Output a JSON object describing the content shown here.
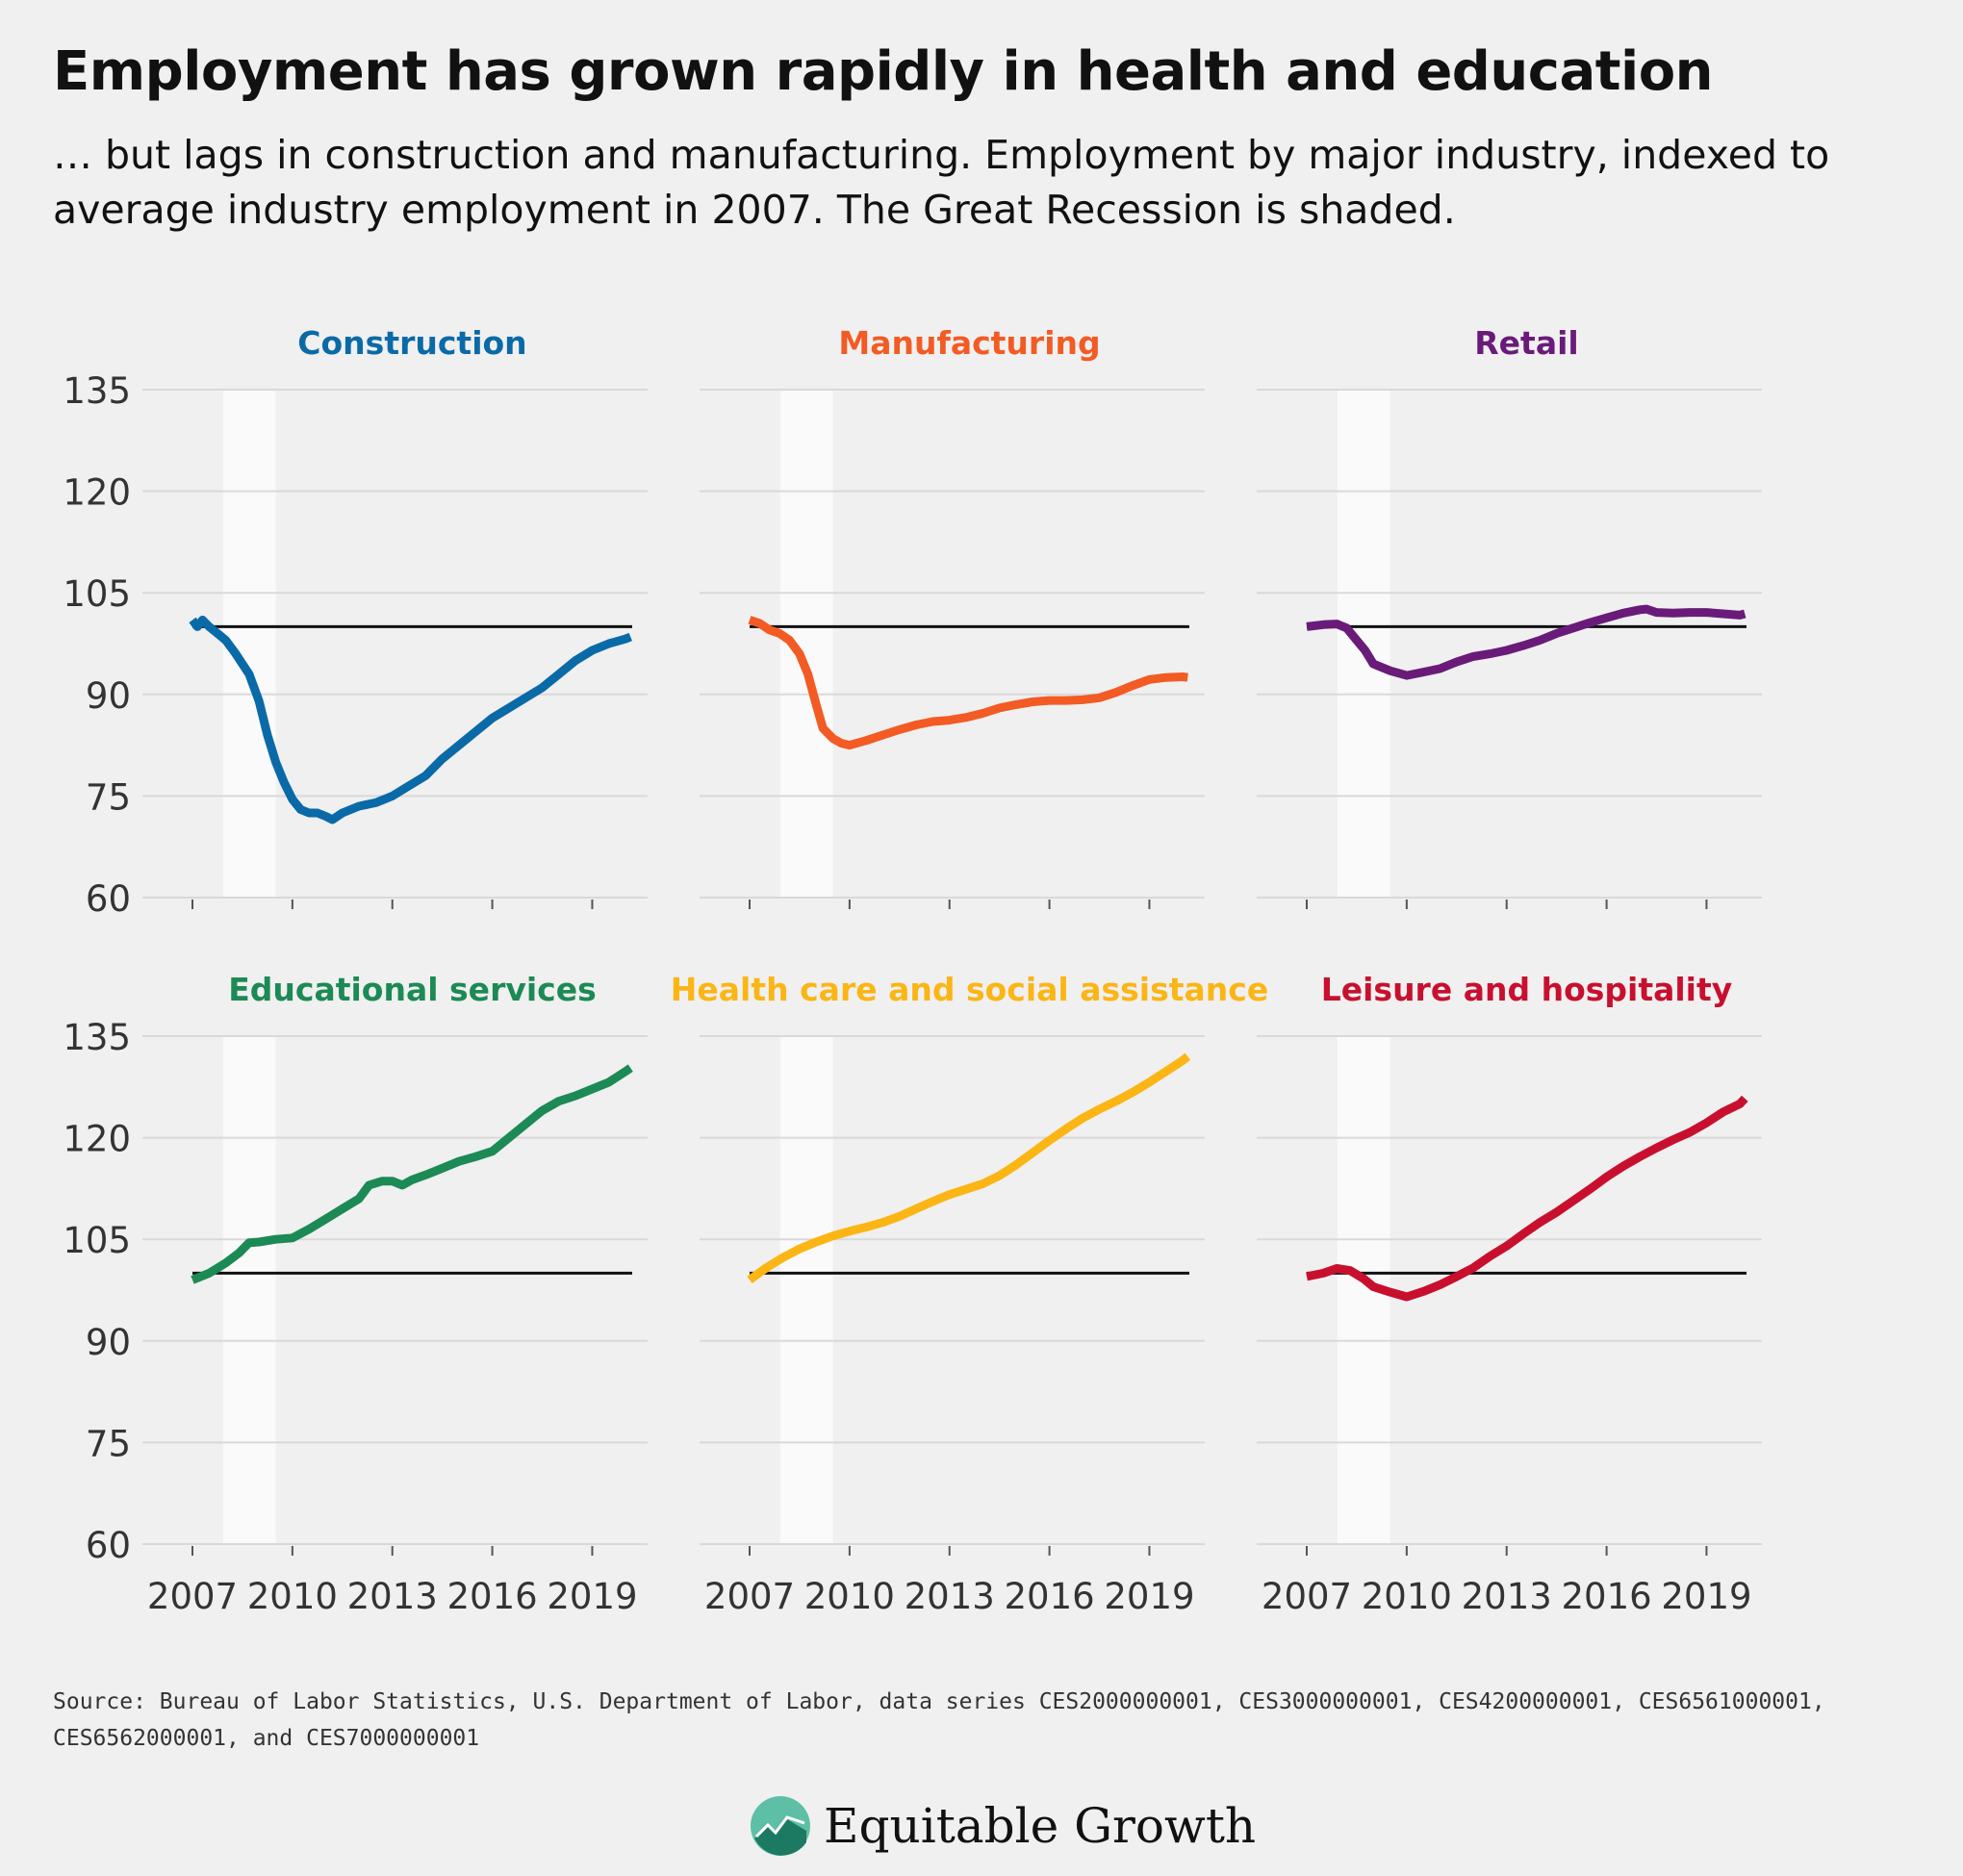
{
  "title": "Employment has grown rapidly in health and education",
  "subtitle": "… but lags in construction and manufacturing. Employment by major industry, indexed to average industry employment in 2007. The Great Recession is shaded.",
  "source": "Source: Bureau of Labor Statistics, U.S. Department of Labor, data series CES2000000001, CES3000000001, CES4200000001, CES6561000001, CES6562000001, and CES7000000001",
  "brand": {
    "name": "Equitable Growth",
    "icon": "equitable-growth-logo-icon"
  },
  "chart_data": {
    "type": "line",
    "layout": "small-multiples 2x3",
    "x_ticks": [
      "2007",
      "2010",
      "2013",
      "2016",
      "2019"
    ],
    "x_tick_values": [
      2007,
      2010,
      2013,
      2016,
      2019
    ],
    "xlim": [
      2007,
      2020.2
    ],
    "y_ticks": [
      "60",
      "75",
      "90",
      "105",
      "120",
      "135"
    ],
    "y_tick_values": [
      60,
      75,
      90,
      105,
      120,
      135
    ],
    "ylim": [
      60,
      135
    ],
    "reference_line": 100,
    "shaded_region": [
      2007.92,
      2009.5
    ],
    "grid": true,
    "panels": [
      {
        "title": "Construction",
        "color": "#0a6aa7",
        "points": [
          [
            2007.0,
            101
          ],
          [
            2007.15,
            100
          ],
          [
            2007.3,
            101
          ],
          [
            2007.5,
            100
          ],
          [
            2007.75,
            99
          ],
          [
            2008.0,
            98
          ],
          [
            2008.3,
            96
          ],
          [
            2008.7,
            93
          ],
          [
            2009.0,
            89
          ],
          [
            2009.25,
            84
          ],
          [
            2009.5,
            80
          ],
          [
            2009.75,
            77
          ],
          [
            2010.0,
            74.5
          ],
          [
            2010.25,
            73
          ],
          [
            2010.5,
            72.5
          ],
          [
            2010.75,
            72.5
          ],
          [
            2011.0,
            72
          ],
          [
            2011.2,
            71.5
          ],
          [
            2011.5,
            72.5
          ],
          [
            2012.0,
            73.5
          ],
          [
            2012.5,
            74
          ],
          [
            2013.0,
            75
          ],
          [
            2013.5,
            76.5
          ],
          [
            2014.0,
            78
          ],
          [
            2014.5,
            80.5
          ],
          [
            2015.0,
            82.5
          ],
          [
            2015.5,
            84.5
          ],
          [
            2016.0,
            86.5
          ],
          [
            2016.5,
            88
          ],
          [
            2017.0,
            89.5
          ],
          [
            2017.5,
            91
          ],
          [
            2018.0,
            93
          ],
          [
            2018.5,
            95
          ],
          [
            2019.0,
            96.5
          ],
          [
            2019.5,
            97.5
          ],
          [
            2020.0,
            98.2
          ],
          [
            2020.15,
            98.5
          ]
        ]
      },
      {
        "title": "Manufacturing",
        "color": "#f35b24",
        "points": [
          [
            2007.0,
            101
          ],
          [
            2007.3,
            100.5
          ],
          [
            2007.6,
            99.5
          ],
          [
            2007.9,
            99
          ],
          [
            2008.2,
            98
          ],
          [
            2008.5,
            96
          ],
          [
            2008.75,
            93
          ],
          [
            2009.0,
            88.5
          ],
          [
            2009.2,
            85
          ],
          [
            2009.5,
            83.5
          ],
          [
            2009.75,
            82.8
          ],
          [
            2010.0,
            82.5
          ],
          [
            2010.5,
            83.2
          ],
          [
            2011.0,
            84
          ],
          [
            2011.5,
            84.8
          ],
          [
            2012.0,
            85.5
          ],
          [
            2012.5,
            86
          ],
          [
            2013.0,
            86.2
          ],
          [
            2013.5,
            86.6
          ],
          [
            2014.0,
            87.2
          ],
          [
            2014.5,
            88
          ],
          [
            2015.0,
            88.5
          ],
          [
            2015.5,
            88.9
          ],
          [
            2016.0,
            89.1
          ],
          [
            2016.5,
            89.1
          ],
          [
            2017.0,
            89.2
          ],
          [
            2017.5,
            89.5
          ],
          [
            2018.0,
            90.3
          ],
          [
            2018.5,
            91.3
          ],
          [
            2019.0,
            92.2
          ],
          [
            2019.5,
            92.5
          ],
          [
            2020.0,
            92.6
          ],
          [
            2020.15,
            92.5
          ]
        ]
      },
      {
        "title": "Retail",
        "color": "#6a1b7a",
        "points": [
          [
            2007.0,
            100
          ],
          [
            2007.5,
            100.3
          ],
          [
            2007.9,
            100.4
          ],
          [
            2008.2,
            99.8
          ],
          [
            2008.5,
            98
          ],
          [
            2008.75,
            96.5
          ],
          [
            2009.0,
            94.5
          ],
          [
            2009.5,
            93.5
          ],
          [
            2010.0,
            92.8
          ],
          [
            2010.5,
            93.3
          ],
          [
            2011.0,
            93.8
          ],
          [
            2011.5,
            94.8
          ],
          [
            2012.0,
            95.6
          ],
          [
            2012.5,
            96
          ],
          [
            2013.0,
            96.5
          ],
          [
            2013.5,
            97.2
          ],
          [
            2014.0,
            98
          ],
          [
            2014.5,
            99
          ],
          [
            2015.0,
            99.8
          ],
          [
            2015.5,
            100.6
          ],
          [
            2016.0,
            101.3
          ],
          [
            2016.5,
            102
          ],
          [
            2017.0,
            102.5
          ],
          [
            2017.2,
            102.6
          ],
          [
            2017.5,
            102.1
          ],
          [
            2018.0,
            102
          ],
          [
            2018.5,
            102.1
          ],
          [
            2019.0,
            102.1
          ],
          [
            2019.5,
            101.9
          ],
          [
            2020.0,
            101.7
          ],
          [
            2020.15,
            101.9
          ]
        ]
      },
      {
        "title": "Educational services",
        "color": "#1c8a55",
        "points": [
          [
            2007.0,
            99
          ],
          [
            2007.5,
            100
          ],
          [
            2008.0,
            101.5
          ],
          [
            2008.4,
            103
          ],
          [
            2008.7,
            104.5
          ],
          [
            2009.0,
            104.6
          ],
          [
            2009.5,
            105
          ],
          [
            2010.0,
            105.2
          ],
          [
            2010.5,
            106.5
          ],
          [
            2011.0,
            108
          ],
          [
            2011.5,
            109.5
          ],
          [
            2012.0,
            111
          ],
          [
            2012.3,
            113
          ],
          [
            2012.7,
            113.6
          ],
          [
            2013.0,
            113.6
          ],
          [
            2013.3,
            113
          ],
          [
            2013.6,
            113.8
          ],
          [
            2014.0,
            114.5
          ],
          [
            2014.5,
            115.5
          ],
          [
            2015.0,
            116.5
          ],
          [
            2015.5,
            117.2
          ],
          [
            2016.0,
            118
          ],
          [
            2016.5,
            120
          ],
          [
            2017.0,
            122
          ],
          [
            2017.5,
            124
          ],
          [
            2018.0,
            125.4
          ],
          [
            2018.5,
            126.2
          ],
          [
            2019.0,
            127.2
          ],
          [
            2019.5,
            128.2
          ],
          [
            2020.0,
            129.8
          ],
          [
            2020.15,
            130.3
          ]
        ]
      },
      {
        "title": "Health care and social assistance",
        "color": "#fbb515",
        "points": [
          [
            2007.0,
            99
          ],
          [
            2007.5,
            100.8
          ],
          [
            2008.0,
            102.3
          ],
          [
            2008.5,
            103.6
          ],
          [
            2009.0,
            104.6
          ],
          [
            2009.5,
            105.5
          ],
          [
            2010.0,
            106.2
          ],
          [
            2010.5,
            106.8
          ],
          [
            2011.0,
            107.5
          ],
          [
            2011.5,
            108.4
          ],
          [
            2012.0,
            109.5
          ],
          [
            2012.5,
            110.6
          ],
          [
            2013.0,
            111.6
          ],
          [
            2013.5,
            112.4
          ],
          [
            2014.0,
            113.2
          ],
          [
            2014.5,
            114.4
          ],
          [
            2015.0,
            116
          ],
          [
            2015.5,
            117.8
          ],
          [
            2016.0,
            119.6
          ],
          [
            2016.5,
            121.3
          ],
          [
            2017.0,
            122.9
          ],
          [
            2017.5,
            124.2
          ],
          [
            2018.0,
            125.4
          ],
          [
            2018.5,
            126.7
          ],
          [
            2019.0,
            128.2
          ],
          [
            2019.5,
            129.8
          ],
          [
            2020.0,
            131.4
          ],
          [
            2020.15,
            132
          ]
        ]
      },
      {
        "title": "Leisure and hospitality",
        "color": "#c8102e",
        "points": [
          [
            2007.0,
            99.5
          ],
          [
            2007.5,
            100
          ],
          [
            2007.9,
            100.7
          ],
          [
            2008.3,
            100.4
          ],
          [
            2008.7,
            99.2
          ],
          [
            2009.0,
            98
          ],
          [
            2009.5,
            97.2
          ],
          [
            2010.0,
            96.5
          ],
          [
            2010.5,
            97.3
          ],
          [
            2011.0,
            98.3
          ],
          [
            2011.5,
            99.5
          ],
          [
            2012.0,
            100.8
          ],
          [
            2012.5,
            102.5
          ],
          [
            2013.0,
            104
          ],
          [
            2013.5,
            105.8
          ],
          [
            2014.0,
            107.5
          ],
          [
            2014.5,
            109
          ],
          [
            2015.0,
            110.7
          ],
          [
            2015.5,
            112.4
          ],
          [
            2016.0,
            114.2
          ],
          [
            2016.5,
            115.8
          ],
          [
            2017.0,
            117.2
          ],
          [
            2017.5,
            118.5
          ],
          [
            2018.0,
            119.7
          ],
          [
            2018.5,
            120.8
          ],
          [
            2019.0,
            122.2
          ],
          [
            2019.5,
            123.8
          ],
          [
            2020.0,
            125
          ],
          [
            2020.15,
            125.8
          ]
        ]
      }
    ]
  }
}
